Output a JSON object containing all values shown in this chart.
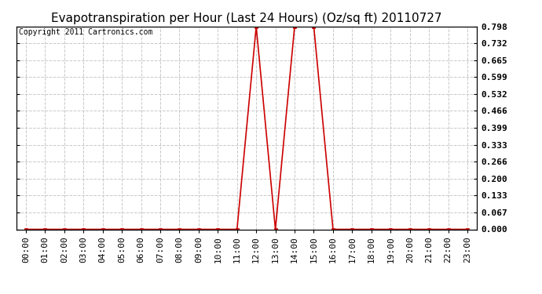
{
  "title": "Evapotranspiration per Hour (Last 24 Hours) (Oz/sq ft) 20110727",
  "copyright_text": "Copyright 2011 Cartronics.com",
  "hours": [
    0,
    1,
    2,
    3,
    4,
    5,
    6,
    7,
    8,
    9,
    10,
    11,
    12,
    13,
    14,
    15,
    16,
    17,
    18,
    19,
    20,
    21,
    22,
    23
  ],
  "values": [
    0.0,
    0.0,
    0.0,
    0.0,
    0.0,
    0.0,
    0.0,
    0.0,
    0.0,
    0.0,
    0.0,
    0.0,
    0.798,
    0.0,
    0.798,
    0.798,
    0.0,
    0.0,
    0.0,
    0.0,
    0.0,
    0.0,
    0.0,
    0.0
  ],
  "x_labels": [
    "00:00",
    "01:00",
    "02:00",
    "03:00",
    "04:00",
    "05:00",
    "06:00",
    "07:00",
    "08:00",
    "09:00",
    "10:00",
    "11:00",
    "12:00",
    "13:00",
    "14:00",
    "15:00",
    "16:00",
    "17:00",
    "18:00",
    "19:00",
    "20:00",
    "21:00",
    "22:00",
    "23:00"
  ],
  "y_ticks": [
    0.0,
    0.067,
    0.133,
    0.2,
    0.266,
    0.333,
    0.399,
    0.466,
    0.532,
    0.599,
    0.665,
    0.732,
    0.798
  ],
  "line_color": "#cc0000",
  "marker_color": "#cc0000",
  "bg_color": "#ffffff",
  "grid_color": "#c8c8c8",
  "title_fontsize": 11,
  "copyright_fontsize": 7,
  "tick_fontsize": 8,
  "ylim_min": 0.0,
  "ylim_max": 0.798
}
